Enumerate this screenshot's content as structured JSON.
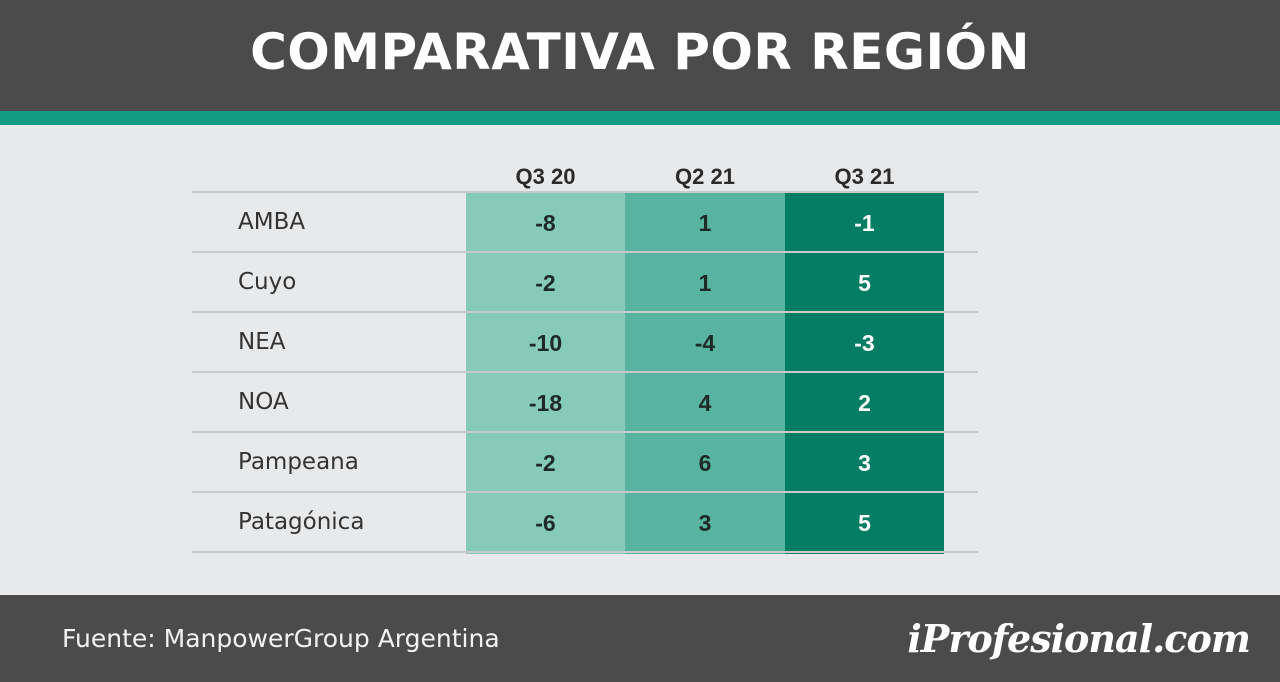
{
  "title": "COMPARATIVA POR REGIÓN",
  "colors": {
    "header_bg": "#4b4b4c",
    "accent": "#129c83",
    "q3_20": "#86cbba",
    "q2_21": "#58b3a1",
    "q3_21": "#037e65"
  },
  "chart_data": {
    "type": "table",
    "title": "COMPARATIVA POR REGIÓN",
    "columns": [
      "Q3 20",
      "Q2 21",
      "Q3 21"
    ],
    "rows": [
      {
        "label": "AMBA",
        "values": [
          "-8",
          "1",
          "-1"
        ]
      },
      {
        "label": "Cuyo",
        "values": [
          "-2",
          "1",
          "5"
        ]
      },
      {
        "label": "NEA",
        "values": [
          "-10",
          "-4",
          "-3"
        ]
      },
      {
        "label": "NOA",
        "values": [
          "-18",
          "4",
          "2"
        ]
      },
      {
        "label": "Pampeana",
        "values": [
          "-2",
          "6",
          "3"
        ]
      },
      {
        "label": "Patagónica",
        "values": [
          "-6",
          "3",
          "5"
        ]
      }
    ]
  },
  "footer": {
    "source": "Fuente: ManpowerGroup Argentina",
    "logo": "iProfesional.com"
  }
}
